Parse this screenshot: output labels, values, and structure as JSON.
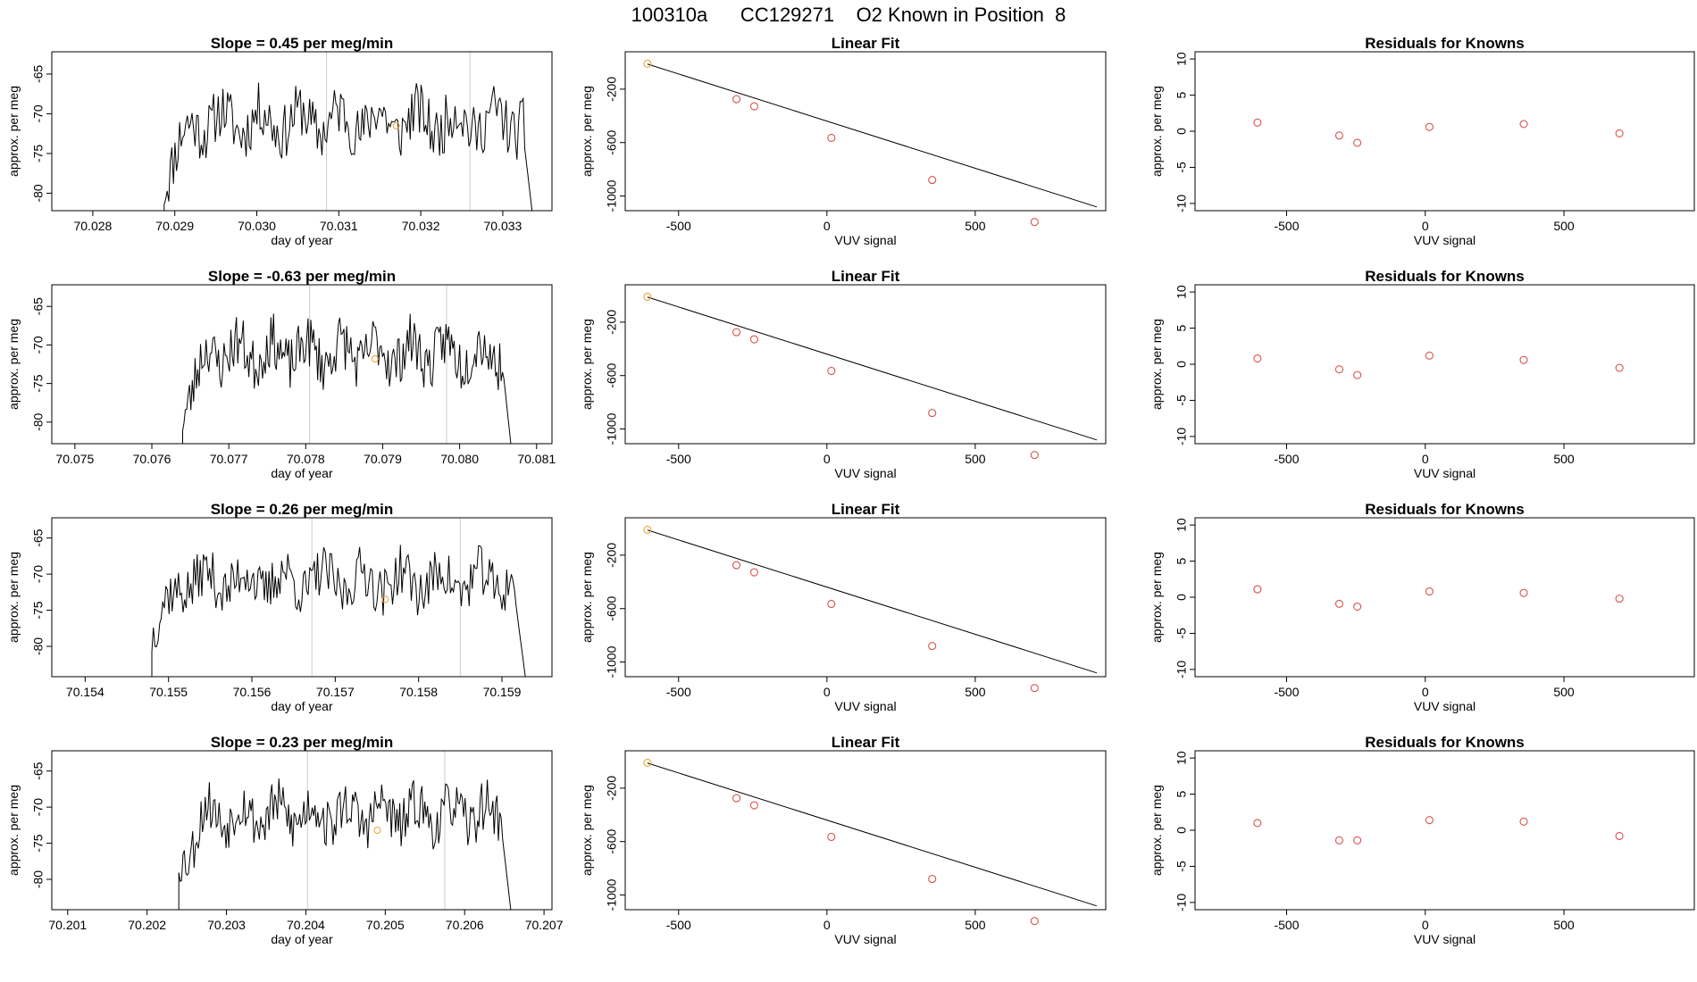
{
  "page": {
    "title": "100310a      CC129271    O2 Known in Position  8"
  },
  "colors": {
    "line": "#000000",
    "frame": "#000000",
    "vline": "#cccccc",
    "point": "#d9534f",
    "highlight": "#f0a030"
  },
  "chart_data": [
    {
      "type": "line",
      "title": "Slope =  0.45  per meg/min",
      "xlabel": "day of year",
      "ylabel": "approx. per meg",
      "xlim": [
        70.0275,
        70.0336
      ],
      "ylim": [
        -82.2,
        -62.2
      ],
      "xticks": [
        70.028,
        70.029,
        70.03,
        70.031,
        70.032,
        70.033
      ],
      "xtick_labels": [
        "70.028",
        "70.029",
        "70.030",
        "70.031",
        "70.032",
        "70.033"
      ],
      "yticks": [
        -80,
        -75,
        -70,
        -65
      ],
      "ytick_labels": [
        "-80",
        "-75",
        "-70",
        "-65"
      ],
      "vlines": [
        70.03085,
        70.0326
      ],
      "highlight": {
        "x": 70.0317,
        "y": -71.5
      },
      "series_start": 70.02887,
      "series_end": 70.0334,
      "seed": 11
    },
    {
      "type": "scatter",
      "title": "Linear Fit",
      "xlabel": "VUV signal",
      "ylabel": "approx. per meg",
      "xlim": [
        -680,
        940
      ],
      "ylim": [
        -1110,
        80
      ],
      "xticks": [
        -500,
        0,
        500
      ],
      "xtick_labels": [
        "-500",
        "0",
        "500"
      ],
      "yticks": [
        -1000,
        -600,
        -200
      ],
      "ytick_labels": [
        "-1000",
        "-600",
        "-200"
      ],
      "x": [
        -605,
        -305,
        -245,
        15,
        355,
        700
      ],
      "y": [
        -10,
        -275,
        -328,
        -565,
        -880,
        -1195
      ],
      "fit_line": [
        [
          -605,
          -12
        ],
        [
          910,
          -1082
        ]
      ],
      "highlight_index": 0
    },
    {
      "type": "scatter",
      "title": "Residuals for Knowns",
      "xlabel": "VUV signal",
      "ylabel": "approx. per meg",
      "xlim": [
        -830,
        970
      ],
      "ylim": [
        -11,
        11
      ],
      "xticks": [
        -500,
        0,
        500
      ],
      "xtick_labels": [
        "-500",
        "0",
        "500"
      ],
      "yticks": [
        -10,
        -5,
        0,
        5,
        10
      ],
      "ytick_labels": [
        "-10",
        "-5",
        "0",
        "5",
        "10"
      ],
      "x": [
        -605,
        -310,
        -245,
        15,
        355,
        700
      ],
      "y": [
        1.2,
        -0.6,
        -1.6,
        0.6,
        1.0,
        -0.3
      ]
    },
    {
      "type": "line",
      "title": "Slope =  -0.63  per meg/min",
      "xlabel": "day of year",
      "ylabel": "approx. per meg",
      "xlim": [
        70.0747,
        70.0812
      ],
      "ylim": [
        -82.8,
        -62.2
      ],
      "xticks": [
        70.075,
        70.076,
        70.077,
        70.078,
        70.079,
        70.08,
        70.081
      ],
      "xtick_labels": [
        "70.075",
        "70.076",
        "70.077",
        "70.078",
        "70.079",
        "70.080",
        "70.081"
      ],
      "yticks": [
        -80,
        -75,
        -70,
        -65
      ],
      "ytick_labels": [
        "-80",
        "-75",
        "-70",
        "-65"
      ],
      "vlines": [
        70.07805,
        70.07983
      ],
      "highlight": {
        "x": 70.0789,
        "y": -71.8
      },
      "series_start": 70.0764,
      "series_end": 70.0807,
      "seed": 23
    },
    {
      "type": "scatter",
      "title": "Linear Fit",
      "xlabel": "VUV signal",
      "ylabel": "approx. per meg",
      "xlim": [
        -680,
        940
      ],
      "ylim": [
        -1110,
        80
      ],
      "xticks": [
        -500,
        0,
        500
      ],
      "xtick_labels": [
        "-500",
        "0",
        "500"
      ],
      "yticks": [
        -1000,
        -600,
        -200
      ],
      "ytick_labels": [
        "-1000",
        "-600",
        "-200"
      ],
      "x": [
        -605,
        -305,
        -245,
        15,
        355,
        700
      ],
      "y": [
        -10,
        -275,
        -328,
        -565,
        -880,
        -1195
      ],
      "fit_line": [
        [
          -605,
          -12
        ],
        [
          910,
          -1082
        ]
      ],
      "highlight_index": 0
    },
    {
      "type": "scatter",
      "title": "Residuals for Knowns",
      "xlabel": "VUV signal",
      "ylabel": "approx. per meg",
      "xlim": [
        -830,
        970
      ],
      "ylim": [
        -11,
        11
      ],
      "xticks": [
        -500,
        0,
        500
      ],
      "xtick_labels": [
        "-500",
        "0",
        "500"
      ],
      "yticks": [
        -10,
        -5,
        0,
        5,
        10
      ],
      "ytick_labels": [
        "-10",
        "-5",
        "0",
        "5",
        "10"
      ],
      "x": [
        -605,
        -310,
        -245,
        15,
        355,
        700
      ],
      "y": [
        0.8,
        -0.7,
        -1.5,
        1.2,
        0.6,
        -0.5
      ]
    },
    {
      "type": "line",
      "title": "Slope =  0.26  per meg/min",
      "xlabel": "day of year",
      "ylabel": "approx. per meg",
      "xlim": [
        70.1536,
        70.1596
      ],
      "ylim": [
        -84.2,
        -62.2
      ],
      "xticks": [
        70.154,
        70.155,
        70.156,
        70.157,
        70.158,
        70.159
      ],
      "xtick_labels": [
        "70.154",
        "70.155",
        "70.156",
        "70.157",
        "70.158",
        "70.159"
      ],
      "yticks": [
        -80,
        -75,
        -70,
        -65
      ],
      "ytick_labels": [
        "-80",
        "-75",
        "-70",
        "-65"
      ],
      "vlines": [
        70.15672,
        70.1585
      ],
      "highlight": {
        "x": 70.1576,
        "y": -73.5
      },
      "series_start": 70.1548,
      "series_end": 70.1593,
      "seed": 37
    },
    {
      "type": "scatter",
      "title": "Linear Fit",
      "xlabel": "VUV signal",
      "ylabel": "approx. per meg",
      "xlim": [
        -680,
        940
      ],
      "ylim": [
        -1110,
        80
      ],
      "xticks": [
        -500,
        0,
        500
      ],
      "xtick_labels": [
        "-500",
        "0",
        "500"
      ],
      "yticks": [
        -1000,
        -600,
        -200
      ],
      "ytick_labels": [
        "-1000",
        "-600",
        "-200"
      ],
      "x": [
        -605,
        -305,
        -245,
        15,
        355,
        700
      ],
      "y": [
        -10,
        -275,
        -328,
        -565,
        -880,
        -1195
      ],
      "fit_line": [
        [
          -605,
          -12
        ],
        [
          910,
          -1082
        ]
      ],
      "highlight_index": 0
    },
    {
      "type": "scatter",
      "title": "Residuals for Knowns",
      "xlabel": "VUV signal",
      "ylabel": "approx. per meg",
      "xlim": [
        -830,
        970
      ],
      "ylim": [
        -11,
        11
      ],
      "xticks": [
        -500,
        0,
        500
      ],
      "xtick_labels": [
        "-500",
        "0",
        "500"
      ],
      "yticks": [
        -10,
        -5,
        0,
        5,
        10
      ],
      "ytick_labels": [
        "-10",
        "-5",
        "0",
        "5",
        "10"
      ],
      "x": [
        -605,
        -310,
        -245,
        15,
        355,
        700
      ],
      "y": [
        1.1,
        -0.9,
        -1.3,
        0.8,
        0.6,
        -0.2
      ]
    },
    {
      "type": "line",
      "title": "Slope =  0.23  per meg/min",
      "xlabel": "day of year",
      "ylabel": "approx. per meg",
      "xlim": [
        70.2008,
        70.2071
      ],
      "ylim": [
        -84.2,
        -62.2
      ],
      "xticks": [
        70.201,
        70.202,
        70.203,
        70.204,
        70.205,
        70.206,
        70.207
      ],
      "xtick_labels": [
        "70.201",
        "70.202",
        "70.203",
        "70.204",
        "70.205",
        "70.206",
        "70.207"
      ],
      "yticks": [
        -80,
        -75,
        -70,
        -65
      ],
      "ytick_labels": [
        "-80",
        "-75",
        "-70",
        "-65"
      ],
      "vlines": [
        70.20402,
        70.20575
      ],
      "highlight": {
        "x": 70.2049,
        "y": -73.2
      },
      "series_start": 70.2024,
      "series_end": 70.2066,
      "seed": 53
    },
    {
      "type": "scatter",
      "title": "Linear Fit",
      "xlabel": "VUV signal",
      "ylabel": "approx. per meg",
      "xlim": [
        -680,
        940
      ],
      "ylim": [
        -1110,
        80
      ],
      "xticks": [
        -500,
        0,
        500
      ],
      "xtick_labels": [
        "-500",
        "0",
        "500"
      ],
      "yticks": [
        -1000,
        -600,
        -200
      ],
      "ytick_labels": [
        "-1000",
        "-600",
        "-200"
      ],
      "x": [
        -605,
        -305,
        -245,
        15,
        355,
        700
      ],
      "y": [
        -10,
        -275,
        -328,
        -565,
        -880,
        -1195
      ],
      "fit_line": [
        [
          -605,
          -12
        ],
        [
          910,
          -1082
        ]
      ],
      "highlight_index": 0
    },
    {
      "type": "scatter",
      "title": "Residuals for Knowns",
      "xlabel": "VUV signal",
      "ylabel": "approx. per meg",
      "xlim": [
        -830,
        970
      ],
      "ylim": [
        -11,
        11
      ],
      "xticks": [
        -500,
        0,
        500
      ],
      "xtick_labels": [
        "-500",
        "0",
        "500"
      ],
      "yticks": [
        -10,
        -5,
        0,
        5,
        10
      ],
      "ytick_labels": [
        "-10",
        "-5",
        "0",
        "5",
        "10"
      ],
      "x": [
        -605,
        -310,
        -245,
        15,
        355,
        700
      ],
      "y": [
        1.0,
        -1.4,
        -1.4,
        1.4,
        1.2,
        -0.8
      ]
    }
  ]
}
